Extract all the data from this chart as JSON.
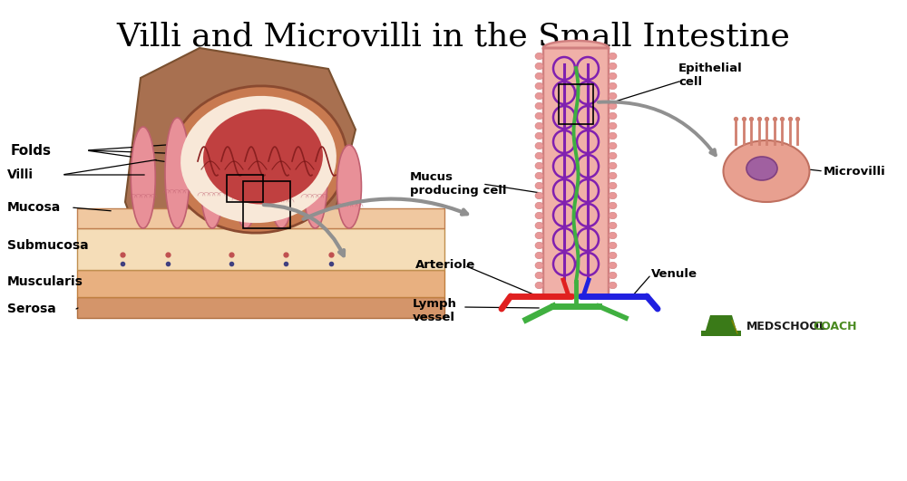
{
  "title": "Villi and Microvilli in the Small Intestine",
  "title_fontsize": 26,
  "background_color": "#ffffff",
  "text_color": "#000000",
  "labels": {
    "folds": "Folds",
    "villi": "Villi",
    "mucosa": "Mucosa",
    "submucosa": "Submucosa",
    "muscularis": "Muscularis",
    "serosa": "Serosa",
    "mucus_producing_cell": "Mucus\nproducing cell",
    "arteriole": "Arteriole",
    "lymph_vessel": "Lymph\nvessel",
    "venule": "Venule",
    "epithelial_cell": "Epithelial\ncell",
    "microvilli": "Microvilli",
    "medschool": "MEDSCHOOL",
    "coach": "COACH"
  },
  "colors": {
    "brown_flap": "#a87050",
    "brown_flap_edge": "#7a5030",
    "intestine_outer": "#c87a50",
    "intestine_outer_edge": "#8a4a30",
    "intestine_wall": "#f8e8d8",
    "inner_lumen": "#c04040",
    "fold_line": "#8a2020",
    "fold_line2": "#701010",
    "serosa": "#d4956a",
    "serosa_edge": "#b07040",
    "muscularis": "#e8b080",
    "muscularis_edge": "#c08040",
    "submucosa": "#f5ddb8",
    "submucosa_edge": "#c09050",
    "mucosa_base": "#f0c8a0",
    "mucosa_edge": "#c08050",
    "dot_red": "#c05050",
    "dot_blue": "#404080",
    "villus_fill": "#e89098",
    "villus_edge": "#c06070",
    "villus_outer_fill": "#f0b0a8",
    "villus_outer_edge": "#d08080",
    "bump_fill": "#e89898",
    "cap_purple": "#8020b0",
    "lymph_green": "#40b040",
    "arteriole_red": "#e02020",
    "venule_blue": "#2020e0",
    "arrow_gray": "#909090",
    "epithelial_fill": "#e8a090",
    "epithelial_edge": "#c07060",
    "nucleus_fill": "#a060a0",
    "nucleus_edge": "#804080",
    "mv_color": "#d08070",
    "hat_color": "#3a7a18",
    "medschool_color": "#1a1a1a",
    "coach_color": "#4a8a20"
  }
}
